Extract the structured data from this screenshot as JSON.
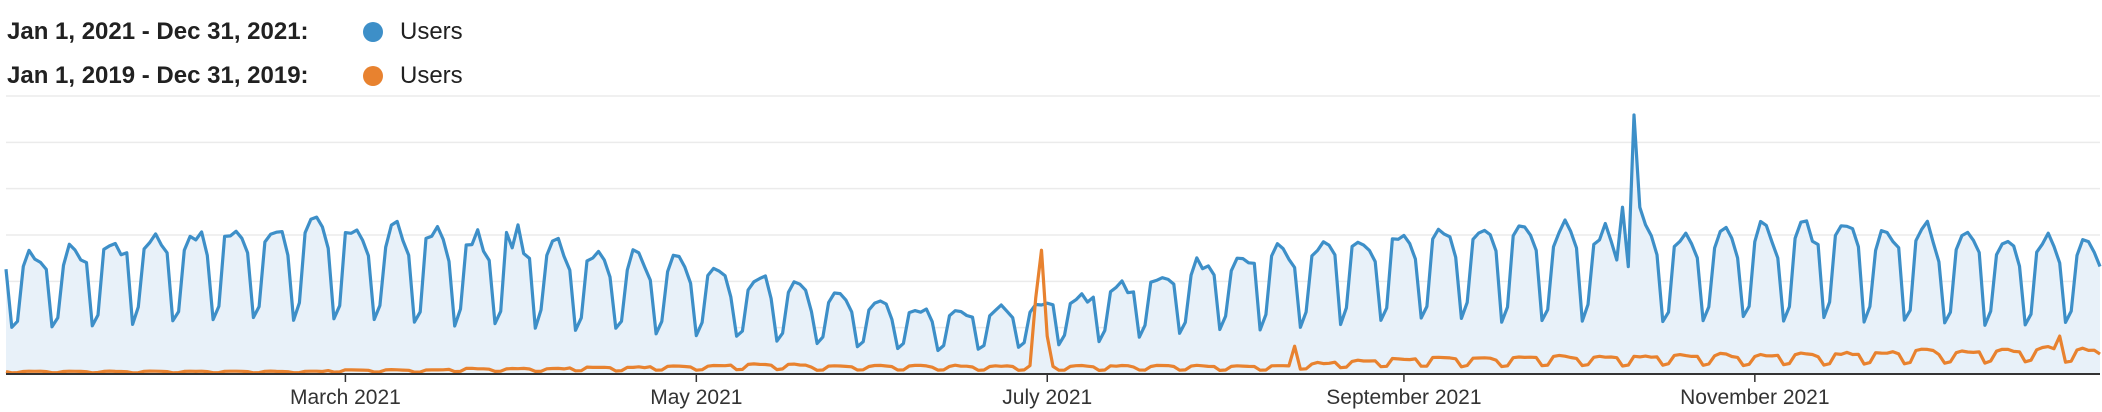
{
  "legend": {
    "series_current": {
      "range": "Jan 1, 2021 - Dec 31, 2021:",
      "label": "Users",
      "color": "#3d8fc8"
    },
    "series_previous": {
      "range": "Jan 1, 2019 - Dec 31, 2019:",
      "label": "Users",
      "color": "#e8822f"
    }
  },
  "chart_data": {
    "type": "area",
    "title": "",
    "xlabel": "",
    "ylabel": "",
    "x_tick_labels": [
      "March 2021",
      "May 2021",
      "July 2021",
      "September 2021",
      "November 2021"
    ],
    "x_tick_dates": [
      "2021-03-01",
      "2021-05-01",
      "2021-07-01",
      "2021-09-01",
      "2021-11-01"
    ],
    "x_domain": [
      "2021-01-01",
      "2021-12-31"
    ],
    "ylim": [
      0,
      220
    ],
    "grid": true,
    "legend_position": "top-left",
    "series": [
      {
        "name": "Users",
        "period": "Jan 1, 2021 - Dec 31, 2021",
        "color": "#3d8fc8",
        "fill": "#e8f1f9",
        "weekly_pattern": [
          0.5,
          0.98,
          1.06,
          1.08,
          1.02,
          0.9,
          0.4
        ],
        "weekly_base": [
          88,
          92,
          98,
          102,
          104,
          106,
          108,
          110,
          108,
          106,
          104,
          100,
          98,
          96,
          92,
          88,
          84,
          78,
          72,
          66,
          58,
          52,
          48,
          46,
          48,
          52,
          58,
          66,
          74,
          82,
          88,
          92,
          96,
          100,
          104,
          106,
          108,
          108,
          108,
          106,
          104,
          104,
          106,
          108,
          108,
          108,
          106,
          106,
          104,
          102,
          100,
          98,
          92
        ],
        "spikes": [
          {
            "date": "2021-10-11",
            "value": 205
          },
          {
            "date": "2021-10-09",
            "value": 132
          },
          {
            "date": "2021-10-12",
            "value": 132
          },
          {
            "date": "2021-10-10",
            "value": 85
          },
          {
            "date": "2021-03-31",
            "value": 118
          },
          {
            "date": "2021-03-29",
            "value": 112
          }
        ]
      },
      {
        "name": "Users",
        "period": "Jan 1, 2019 - Dec 31, 2019",
        "color": "#e8822f",
        "weekly_pattern": [
          0.55,
          1.05,
          1.1,
          1.08,
          1.05,
          0.95,
          0.5
        ],
        "weekly_base": [
          2,
          2,
          2,
          2,
          2,
          2,
          2,
          2,
          3,
          3,
          3,
          4,
          4,
          4,
          5,
          5,
          6,
          6,
          7,
          7,
          6,
          6,
          6,
          6,
          6,
          6,
          6,
          6,
          6,
          6,
          6,
          6,
          8,
          10,
          11,
          12,
          12,
          12,
          13,
          13,
          13,
          14,
          14,
          14,
          15,
          15,
          16,
          17,
          17,
          18,
          19,
          18,
          17
        ],
        "spikes": [
          {
            "date": "2021-06-30",
            "value": 98
          },
          {
            "date": "2021-06-29",
            "value": 60
          },
          {
            "date": "2021-07-01",
            "value": 30
          },
          {
            "date": "2021-08-13",
            "value": 22
          },
          {
            "date": "2021-12-24",
            "value": 30
          }
        ]
      }
    ]
  }
}
